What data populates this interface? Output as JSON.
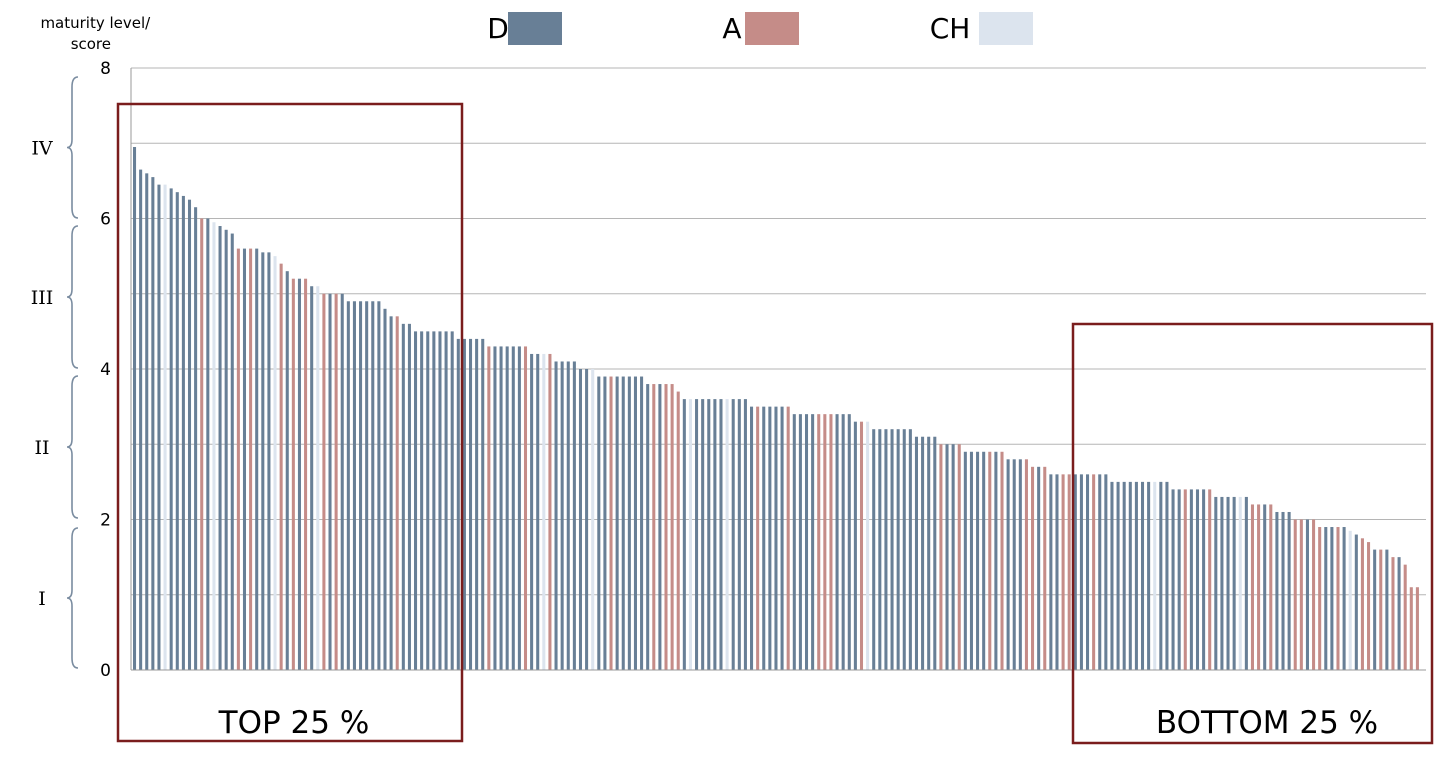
{
  "colors": {
    "D": "#687f96",
    "A": "#c58c88",
    "CH": "#dce4ee",
    "box": "#7a1d1d",
    "grid": "#b5b5b5"
  },
  "legend": [
    {
      "key": "D",
      "label": "D"
    },
    {
      "key": "A",
      "label": "A"
    },
    {
      "key": "CH",
      "label": "CH"
    }
  ],
  "levels": [
    "IV",
    "III",
    "II",
    "I"
  ],
  "boxes": {
    "top": "TOP 25 %",
    "bottom": "BOTTOM 25 %"
  },
  "chart_data": {
    "type": "bar",
    "ylabel": "maturity level/\nscore",
    "ylim": [
      0,
      8
    ],
    "yticks": [
      0,
      2,
      4,
      6,
      8
    ],
    "grid": true,
    "legend_position": "top",
    "series": [
      {
        "name": "D",
        "color": "#687f96"
      },
      {
        "name": "A",
        "color": "#c58c88"
      },
      {
        "name": "CH",
        "color": "#dce4ee"
      }
    ],
    "bars": [
      {
        "v": 6.95,
        "s": "D"
      },
      {
        "v": 6.65,
        "s": "D"
      },
      {
        "v": 6.6,
        "s": "D"
      },
      {
        "v": 6.55,
        "s": "D"
      },
      {
        "v": 6.45,
        "s": "D"
      },
      {
        "v": 6.45,
        "s": "CH"
      },
      {
        "v": 6.4,
        "s": "D"
      },
      {
        "v": 6.35,
        "s": "D"
      },
      {
        "v": 6.3,
        "s": "D"
      },
      {
        "v": 6.25,
        "s": "D"
      },
      {
        "v": 6.15,
        "s": "D"
      },
      {
        "v": 6.0,
        "s": "A"
      },
      {
        "v": 6.0,
        "s": "D"
      },
      {
        "v": 5.95,
        "s": "CH"
      },
      {
        "v": 5.9,
        "s": "D"
      },
      {
        "v": 5.85,
        "s": "D"
      },
      {
        "v": 5.8,
        "s": "D"
      },
      {
        "v": 5.6,
        "s": "A"
      },
      {
        "v": 5.6,
        "s": "D"
      },
      {
        "v": 5.6,
        "s": "A"
      },
      {
        "v": 5.6,
        "s": "D"
      },
      {
        "v": 5.55,
        "s": "D"
      },
      {
        "v": 5.55,
        "s": "D"
      },
      {
        "v": 5.5,
        "s": "CH"
      },
      {
        "v": 5.4,
        "s": "A"
      },
      {
        "v": 5.3,
        "s": "D"
      },
      {
        "v": 5.2,
        "s": "A"
      },
      {
        "v": 5.2,
        "s": "D"
      },
      {
        "v": 5.2,
        "s": "A"
      },
      {
        "v": 5.1,
        "s": "D"
      },
      {
        "v": 5.1,
        "s": "CH"
      },
      {
        "v": 5.0,
        "s": "A"
      },
      {
        "v": 5.0,
        "s": "D"
      },
      {
        "v": 5.0,
        "s": "A"
      },
      {
        "v": 5.0,
        "s": "D"
      },
      {
        "v": 4.9,
        "s": "D"
      },
      {
        "v": 4.9,
        "s": "D"
      },
      {
        "v": 4.9,
        "s": "D"
      },
      {
        "v": 4.9,
        "s": "D"
      },
      {
        "v": 4.9,
        "s": "D"
      },
      {
        "v": 4.9,
        "s": "D"
      },
      {
        "v": 4.8,
        "s": "D"
      },
      {
        "v": 4.7,
        "s": "D"
      },
      {
        "v": 4.7,
        "s": "A"
      },
      {
        "v": 4.6,
        "s": "D"
      },
      {
        "v": 4.6,
        "s": "D"
      },
      {
        "v": 4.5,
        "s": "D"
      },
      {
        "v": 4.5,
        "s": "D"
      },
      {
        "v": 4.5,
        "s": "D"
      },
      {
        "v": 4.5,
        "s": "D"
      },
      {
        "v": 4.5,
        "s": "D"
      },
      {
        "v": 4.5,
        "s": "D"
      },
      {
        "v": 4.5,
        "s": "D"
      },
      {
        "v": 4.4,
        "s": "D"
      },
      {
        "v": 4.4,
        "s": "D"
      },
      {
        "v": 4.4,
        "s": "D"
      },
      {
        "v": 4.4,
        "s": "D"
      },
      {
        "v": 4.4,
        "s": "D"
      },
      {
        "v": 4.3,
        "s": "A"
      },
      {
        "v": 4.3,
        "s": "D"
      },
      {
        "v": 4.3,
        "s": "D"
      },
      {
        "v": 4.3,
        "s": "D"
      },
      {
        "v": 4.3,
        "s": "D"
      },
      {
        "v": 4.3,
        "s": "D"
      },
      {
        "v": 4.3,
        "s": "A"
      },
      {
        "v": 4.2,
        "s": "D"
      },
      {
        "v": 4.2,
        "s": "D"
      },
      {
        "v": 4.2,
        "s": "CH"
      },
      {
        "v": 4.2,
        "s": "A"
      },
      {
        "v": 4.1,
        "s": "D"
      },
      {
        "v": 4.1,
        "s": "D"
      },
      {
        "v": 4.1,
        "s": "D"
      },
      {
        "v": 4.1,
        "s": "D"
      },
      {
        "v": 4.0,
        "s": "D"
      },
      {
        "v": 4.0,
        "s": "D"
      },
      {
        "v": 4.0,
        "s": "CH"
      },
      {
        "v": 3.9,
        "s": "D"
      },
      {
        "v": 3.9,
        "s": "D"
      },
      {
        "v": 3.9,
        "s": "A"
      },
      {
        "v": 3.9,
        "s": "D"
      },
      {
        "v": 3.9,
        "s": "D"
      },
      {
        "v": 3.9,
        "s": "D"
      },
      {
        "v": 3.9,
        "s": "D"
      },
      {
        "v": 3.9,
        "s": "D"
      },
      {
        "v": 3.8,
        "s": "D"
      },
      {
        "v": 3.8,
        "s": "A"
      },
      {
        "v": 3.8,
        "s": "D"
      },
      {
        "v": 3.8,
        "s": "A"
      },
      {
        "v": 3.8,
        "s": "A"
      },
      {
        "v": 3.7,
        "s": "A"
      },
      {
        "v": 3.6,
        "s": "D"
      },
      {
        "v": 3.6,
        "s": "CH"
      },
      {
        "v": 3.6,
        "s": "D"
      },
      {
        "v": 3.6,
        "s": "D"
      },
      {
        "v": 3.6,
        "s": "D"
      },
      {
        "v": 3.6,
        "s": "D"
      },
      {
        "v": 3.6,
        "s": "D"
      },
      {
        "v": 3.6,
        "s": "CH"
      },
      {
        "v": 3.6,
        "s": "D"
      },
      {
        "v": 3.6,
        "s": "D"
      },
      {
        "v": 3.6,
        "s": "D"
      },
      {
        "v": 3.5,
        "s": "D"
      },
      {
        "v": 3.5,
        "s": "A"
      },
      {
        "v": 3.5,
        "s": "D"
      },
      {
        "v": 3.5,
        "s": "D"
      },
      {
        "v": 3.5,
        "s": "D"
      },
      {
        "v": 3.5,
        "s": "D"
      },
      {
        "v": 3.5,
        "s": "A"
      },
      {
        "v": 3.4,
        "s": "D"
      },
      {
        "v": 3.4,
        "s": "D"
      },
      {
        "v": 3.4,
        "s": "D"
      },
      {
        "v": 3.4,
        "s": "D"
      },
      {
        "v": 3.4,
        "s": "A"
      },
      {
        "v": 3.4,
        "s": "A"
      },
      {
        "v": 3.4,
        "s": "A"
      },
      {
        "v": 3.4,
        "s": "D"
      },
      {
        "v": 3.4,
        "s": "D"
      },
      {
        "v": 3.4,
        "s": "D"
      },
      {
        "v": 3.3,
        "s": "D"
      },
      {
        "v": 3.3,
        "s": "A"
      },
      {
        "v": 3.3,
        "s": "CH"
      },
      {
        "v": 3.2,
        "s": "D"
      },
      {
        "v": 3.2,
        "s": "D"
      },
      {
        "v": 3.2,
        "s": "D"
      },
      {
        "v": 3.2,
        "s": "D"
      },
      {
        "v": 3.2,
        "s": "D"
      },
      {
        "v": 3.2,
        "s": "D"
      },
      {
        "v": 3.2,
        "s": "D"
      },
      {
        "v": 3.1,
        "s": "D"
      },
      {
        "v": 3.1,
        "s": "D"
      },
      {
        "v": 3.1,
        "s": "D"
      },
      {
        "v": 3.1,
        "s": "D"
      },
      {
        "v": 3.0,
        "s": "A"
      },
      {
        "v": 3.0,
        "s": "D"
      },
      {
        "v": 3.0,
        "s": "D"
      },
      {
        "v": 3.0,
        "s": "A"
      },
      {
        "v": 2.9,
        "s": "D"
      },
      {
        "v": 2.9,
        "s": "D"
      },
      {
        "v": 2.9,
        "s": "D"
      },
      {
        "v": 2.9,
        "s": "D"
      },
      {
        "v": 2.9,
        "s": "A"
      },
      {
        "v": 2.9,
        "s": "D"
      },
      {
        "v": 2.9,
        "s": "A"
      },
      {
        "v": 2.8,
        "s": "D"
      },
      {
        "v": 2.8,
        "s": "D"
      },
      {
        "v": 2.8,
        "s": "D"
      },
      {
        "v": 2.8,
        "s": "A"
      },
      {
        "v": 2.7,
        "s": "A"
      },
      {
        "v": 2.7,
        "s": "D"
      },
      {
        "v": 2.7,
        "s": "A"
      },
      {
        "v": 2.6,
        "s": "D"
      },
      {
        "v": 2.6,
        "s": "D"
      },
      {
        "v": 2.6,
        "s": "A"
      },
      {
        "v": 2.6,
        "s": "A"
      },
      {
        "v": 2.6,
        "s": "D"
      },
      {
        "v": 2.6,
        "s": "D"
      },
      {
        "v": 2.6,
        "s": "D"
      },
      {
        "v": 2.6,
        "s": "A"
      },
      {
        "v": 2.6,
        "s": "D"
      },
      {
        "v": 2.6,
        "s": "D"
      },
      {
        "v": 2.5,
        "s": "D"
      },
      {
        "v": 2.5,
        "s": "D"
      },
      {
        "v": 2.5,
        "s": "D"
      },
      {
        "v": 2.5,
        "s": "D"
      },
      {
        "v": 2.5,
        "s": "D"
      },
      {
        "v": 2.5,
        "s": "D"
      },
      {
        "v": 2.5,
        "s": "D"
      },
      {
        "v": 2.5,
        "s": "CH"
      },
      {
        "v": 2.5,
        "s": "D"
      },
      {
        "v": 2.5,
        "s": "D"
      },
      {
        "v": 2.4,
        "s": "D"
      },
      {
        "v": 2.4,
        "s": "D"
      },
      {
        "v": 2.4,
        "s": "A"
      },
      {
        "v": 2.4,
        "s": "D"
      },
      {
        "v": 2.4,
        "s": "D"
      },
      {
        "v": 2.4,
        "s": "D"
      },
      {
        "v": 2.4,
        "s": "A"
      },
      {
        "v": 2.3,
        "s": "D"
      },
      {
        "v": 2.3,
        "s": "D"
      },
      {
        "v": 2.3,
        "s": "D"
      },
      {
        "v": 2.3,
        "s": "D"
      },
      {
        "v": 2.3,
        "s": "CH"
      },
      {
        "v": 2.3,
        "s": "D"
      },
      {
        "v": 2.2,
        "s": "A"
      },
      {
        "v": 2.2,
        "s": "A"
      },
      {
        "v": 2.2,
        "s": "D"
      },
      {
        "v": 2.2,
        "s": "A"
      },
      {
        "v": 2.1,
        "s": "D"
      },
      {
        "v": 2.1,
        "s": "D"
      },
      {
        "v": 2.1,
        "s": "D"
      },
      {
        "v": 2.0,
        "s": "A"
      },
      {
        "v": 2.0,
        "s": "A"
      },
      {
        "v": 2.0,
        "s": "D"
      },
      {
        "v": 2.0,
        "s": "A"
      },
      {
        "v": 1.9,
        "s": "A"
      },
      {
        "v": 1.9,
        "s": "D"
      },
      {
        "v": 1.9,
        "s": "D"
      },
      {
        "v": 1.9,
        "s": "A"
      },
      {
        "v": 1.9,
        "s": "D"
      },
      {
        "v": 1.85,
        "s": "CH"
      },
      {
        "v": 1.8,
        "s": "D"
      },
      {
        "v": 1.75,
        "s": "A"
      },
      {
        "v": 1.7,
        "s": "A"
      },
      {
        "v": 1.6,
        "s": "D"
      },
      {
        "v": 1.6,
        "s": "A"
      },
      {
        "v": 1.6,
        "s": "D"
      },
      {
        "v": 1.5,
        "s": "A"
      },
      {
        "v": 1.5,
        "s": "D"
      },
      {
        "v": 1.4,
        "s": "A"
      },
      {
        "v": 1.1,
        "s": "A"
      },
      {
        "v": 1.1,
        "s": "A"
      }
    ]
  }
}
